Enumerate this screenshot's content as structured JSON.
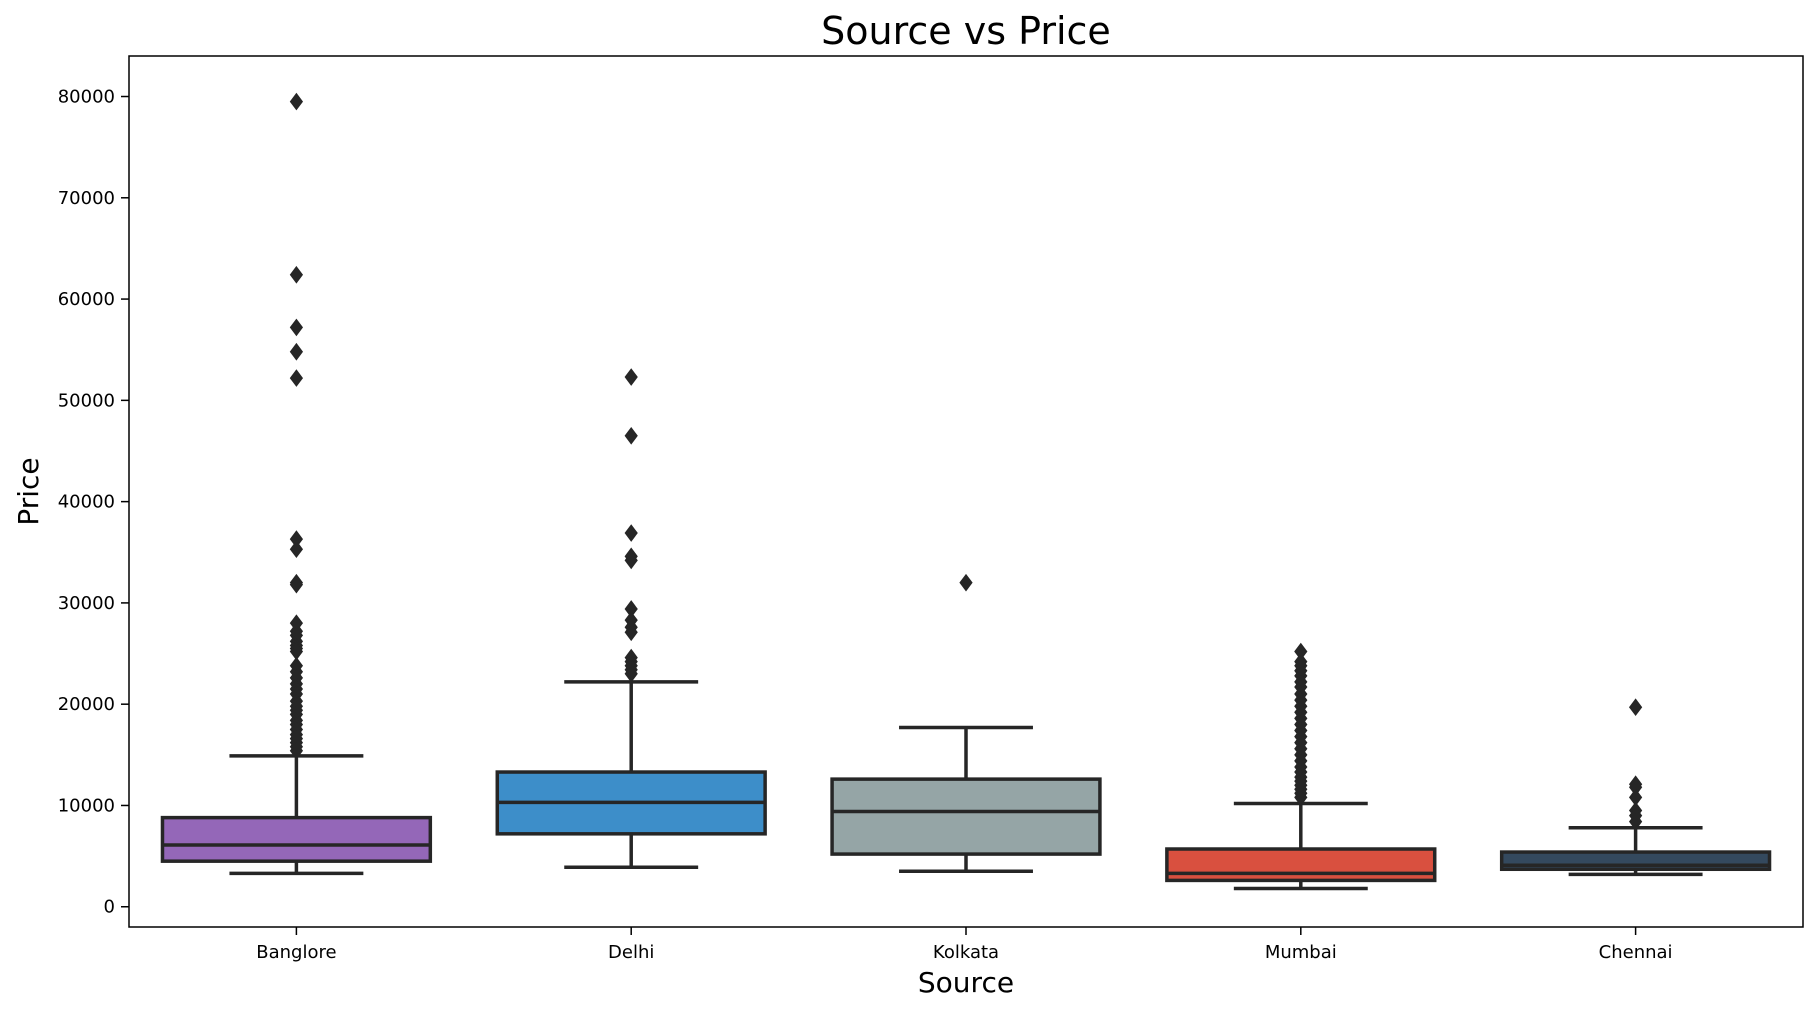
{
  "chart_data": {
    "type": "box",
    "title": "Source vs Price",
    "xlabel": "Source",
    "ylabel": "Price",
    "ylim": [
      -2000,
      84000
    ],
    "yticks": [
      0,
      10000,
      20000,
      30000,
      40000,
      50000,
      60000,
      70000,
      80000
    ],
    "categories": [
      "Banglore",
      "Delhi",
      "Kolkata",
      "Mumbai",
      "Chennai"
    ],
    "grid": false,
    "legend": "none",
    "boxes": [
      {
        "category": "Banglore",
        "color": "#9467b8",
        "whisker_low": 3300,
        "q1": 4500,
        "median": 6100,
        "q3": 8800,
        "whisker_high": 14900,
        "outliers": [
          79500,
          62400,
          57200,
          54800,
          52200,
          36300,
          35300,
          32000,
          31800,
          28000,
          27200,
          26800,
          26200,
          25800,
          25500,
          25200,
          23800,
          23200,
          22600,
          22000,
          21500,
          21000,
          20300,
          19800,
          19400,
          19000,
          18400,
          18000,
          17500,
          17000,
          16600,
          16200,
          15800,
          15400
        ]
      },
      {
        "category": "Delhi",
        "color": "#3d8ec9",
        "whisker_low": 3900,
        "q1": 7200,
        "median": 10300,
        "q3": 13300,
        "whisker_high": 22200,
        "outliers": [
          52300,
          46500,
          36900,
          34600,
          34200,
          29400,
          28300,
          27600,
          27100,
          24600,
          24200,
          23800,
          23400,
          23000
        ]
      },
      {
        "category": "Kolkata",
        "color": "#95a5a6",
        "whisker_low": 3500,
        "q1": 5200,
        "median": 9400,
        "q3": 12600,
        "whisker_high": 17700,
        "outliers": [
          32000
        ]
      },
      {
        "category": "Mumbai",
        "color": "#d9503f",
        "whisker_low": 1800,
        "q1": 2600,
        "median": 3300,
        "q3": 5700,
        "whisker_high": 10200,
        "outliers": [
          25200,
          24200,
          23800,
          23300,
          22800,
          22200,
          21700,
          21000,
          20400,
          19800,
          19200,
          18600,
          18000,
          17400,
          16800,
          16200,
          15600,
          15000,
          14400,
          13800,
          13300,
          12800,
          12400,
          12000,
          11600,
          11200,
          10800
        ]
      },
      {
        "category": "Chennai",
        "color": "#34495e",
        "whisker_low": 3200,
        "q1": 3700,
        "median": 4100,
        "q3": 5400,
        "whisker_high": 7800,
        "outliers": [
          19700,
          12100,
          11800,
          10800,
          9500,
          9000,
          8400
        ]
      }
    ]
  }
}
